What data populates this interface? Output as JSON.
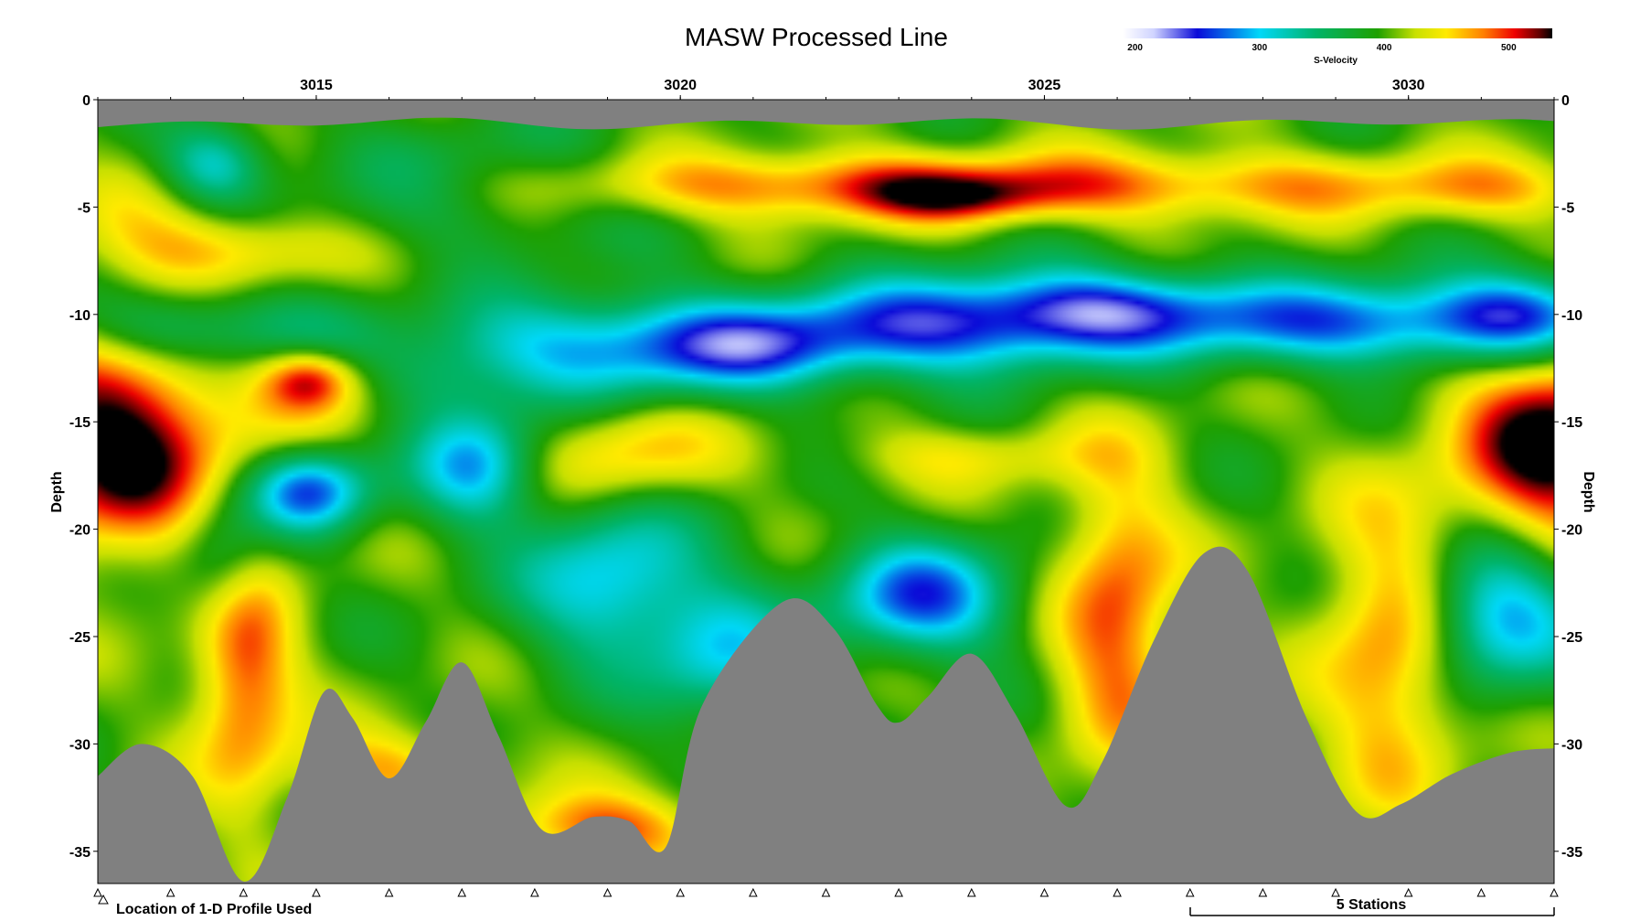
{
  "chart_data": {
    "type": "heatmap",
    "title": "MASW Processed Line",
    "colorbar": {
      "label": "S-Velocity",
      "min": 190,
      "max": 535,
      "ticks": [
        200,
        300,
        400,
        500
      ],
      "stops": [
        {
          "v": 190,
          "c": "#ffffff"
        },
        {
          "v": 215,
          "c": "#d0d4ff"
        },
        {
          "v": 250,
          "c": "#0b0bd8"
        },
        {
          "v": 300,
          "c": "#00d8f8"
        },
        {
          "v": 345,
          "c": "#00b46a"
        },
        {
          "v": 395,
          "c": "#1fa000"
        },
        {
          "v": 425,
          "c": "#c8e000"
        },
        {
          "v": 450,
          "c": "#ffea00"
        },
        {
          "v": 480,
          "c": "#ff7e00"
        },
        {
          "v": 505,
          "c": "#ee0000"
        },
        {
          "v": 525,
          "c": "#600000"
        },
        {
          "v": 535,
          "c": "#000000"
        }
      ]
    },
    "xlim": [
      3012,
      3032
    ],
    "ylim": [
      -36.5,
      0
    ],
    "x_ticks": [
      3015,
      3020,
      3025,
      3030
    ],
    "y_ticks": [
      0,
      -5,
      -10,
      -15,
      -20,
      -25,
      -30,
      -35
    ],
    "ylabel": "Depth",
    "surface_depth": -1.1,
    "profile_stations": [
      3012,
      3013,
      3014,
      3015,
      3016,
      3017,
      3018,
      3019,
      3020,
      3021,
      3022,
      3023,
      3024,
      3025,
      3026,
      3027,
      3028,
      3029,
      3030,
      3031,
      3032
    ],
    "bottom_boundary": [
      [
        3012,
        -31.5
      ],
      [
        3012.6,
        -30.0
      ],
      [
        3013.3,
        -31.5
      ],
      [
        3014,
        -36.4
      ],
      [
        3014.6,
        -32.5
      ],
      [
        3015.1,
        -27.6
      ],
      [
        3015.5,
        -28.8
      ],
      [
        3016,
        -31.6
      ],
      [
        3016.5,
        -29.0
      ],
      [
        3017,
        -26.2
      ],
      [
        3017.5,
        -29.6
      ],
      [
        3018.1,
        -34.0
      ],
      [
        3018.8,
        -33.4
      ],
      [
        3019.3,
        -33.6
      ],
      [
        3019.8,
        -34.8
      ],
      [
        3020.3,
        -28.2
      ],
      [
        3021.4,
        -23.4
      ],
      [
        3022.1,
        -24.6
      ],
      [
        3022.7,
        -28.2
      ],
      [
        3023,
        -29.0
      ],
      [
        3023.4,
        -27.8
      ],
      [
        3024,
        -25.8
      ],
      [
        3024.6,
        -28.6
      ],
      [
        3025.3,
        -32.9
      ],
      [
        3025.8,
        -30.8
      ],
      [
        3026.5,
        -25.2
      ],
      [
        3027.2,
        -21.1
      ],
      [
        3027.8,
        -22.0
      ],
      [
        3028.6,
        -28.8
      ],
      [
        3029.3,
        -33.2
      ],
      [
        3029.9,
        -32.8
      ],
      [
        3030.6,
        -31.4
      ],
      [
        3031.4,
        -30.4
      ],
      [
        3032,
        -30.2
      ]
    ],
    "velocity_anomalies": [
      {
        "x": 3014.7,
        "z": -11.0,
        "sx": 0.9,
        "sz": 1.6,
        "a": -45
      },
      {
        "x": 3018.9,
        "z": -11.5,
        "sx": 1.6,
        "sz": 1.7,
        "a": -110
      },
      {
        "x": 3021.1,
        "z": -11.5,
        "sx": 1.1,
        "sz": 1.4,
        "a": -85
      },
      {
        "x": 3023.7,
        "z": -10.5,
        "sx": 1.6,
        "sz": 1.6,
        "a": -135
      },
      {
        "x": 3025.9,
        "z": -9.6,
        "sx": 1.2,
        "sz": 1.3,
        "a": -90
      },
      {
        "x": 3029.5,
        "z": -10.4,
        "sx": 2.3,
        "sz": 1.4,
        "a": -130
      },
      {
        "x": 3031.6,
        "z": -9.8,
        "sx": 0.8,
        "sz": 1.4,
        "a": -85
      },
      {
        "x": 3013.6,
        "z": -3.0,
        "sx": 0.5,
        "sz": 1.3,
        "a": -85
      },
      {
        "x": 3017.3,
        "z": -4.0,
        "sx": 1.8,
        "sz": 2.2,
        "a": -40
      },
      {
        "x": 3016.6,
        "z": -13.2,
        "sx": 0.6,
        "sz": 1.4,
        "a": -40
      },
      {
        "x": 3014.9,
        "z": -18.2,
        "sx": 0.6,
        "sz": 1.4,
        "a": -140
      },
      {
        "x": 3014.9,
        "z": -13.0,
        "sx": 0.45,
        "sz": 1.0,
        "a": 100
      },
      {
        "x": 3017.2,
        "z": -17.0,
        "sx": 0.6,
        "sz": 1.9,
        "a": -110
      },
      {
        "x": 3019.1,
        "z": -22.5,
        "sx": 0.9,
        "sz": 2.6,
        "a": -105
      },
      {
        "x": 3020.6,
        "z": -26.0,
        "sx": 0.7,
        "sz": 2.2,
        "a": -85
      },
      {
        "x": 3023.3,
        "z": -23.2,
        "sx": 0.9,
        "sz": 1.9,
        "a": -130
      },
      {
        "x": 3031.2,
        "z": -24.0,
        "sx": 0.8,
        "sz": 2.4,
        "a": -125
      },
      {
        "x": 3013.7,
        "z": -21.6,
        "sx": 0.45,
        "sz": 2.1,
        "a": -70
      },
      {
        "x": 3013.0,
        "z": -10.6,
        "sx": 0.9,
        "sz": 1.3,
        "a": -70
      },
      {
        "x": 3021.5,
        "z": -4.0,
        "sx": 2.6,
        "sz": 1.1,
        "a": 80
      },
      {
        "x": 3023.9,
        "z": -4.6,
        "sx": 0.9,
        "sz": 0.8,
        "a": 60
      },
      {
        "x": 3027.0,
        "z": -4.0,
        "sx": 3.0,
        "sz": 1.1,
        "a": 70
      },
      {
        "x": 3031.2,
        "z": -4.2,
        "sx": 1.1,
        "sz": 1.0,
        "a": 40
      },
      {
        "x": 3013.9,
        "z": -7.0,
        "sx": 1.0,
        "sz": 1.2,
        "a": 60
      },
      {
        "x": 3012.3,
        "z": -16.0,
        "sx": 1.0,
        "sz": 3.4,
        "a": 150
      },
      {
        "x": 3032.0,
        "z": -16.0,
        "sx": 0.9,
        "sz": 3.2,
        "a": 150
      },
      {
        "x": 3014.0,
        "z": -26.5,
        "sx": 0.5,
        "sz": 4.2,
        "a": 100
      },
      {
        "x": 3016.0,
        "z": -31.2,
        "sx": 0.9,
        "sz": 1.3,
        "a": 65
      },
      {
        "x": 3019.0,
        "z": -34.0,
        "sx": 1.0,
        "sz": 1.2,
        "a": 90
      },
      {
        "x": 3019.3,
        "z": -16.5,
        "sx": 0.9,
        "sz": 1.6,
        "a": 65
      },
      {
        "x": 3024.0,
        "z": -16.6,
        "sx": 1.3,
        "sz": 1.0,
        "a": 40
      },
      {
        "x": 3026.0,
        "z": -24.0,
        "sx": 0.6,
        "sz": 5.0,
        "a": 95
      },
      {
        "x": 3029.8,
        "z": -25.5,
        "sx": 0.7,
        "sz": 5.0,
        "a": 90
      },
      {
        "x": 3015.0,
        "z": -13.5,
        "sx": 1.0,
        "sz": 2.2,
        "a": 30
      },
      {
        "x": 3012.7,
        "z": -5.8,
        "sx": 0.8,
        "sz": 2.0,
        "a": 30
      }
    ]
  },
  "scale_bar_label": "5 Stations",
  "legend_note": "Location of 1-D Profile Used"
}
